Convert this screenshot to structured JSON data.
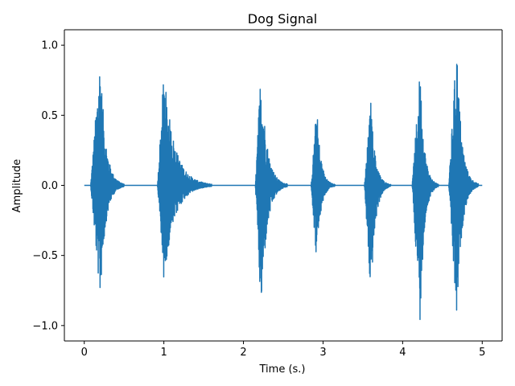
{
  "chart_data": {
    "type": "line",
    "title": "Dog Signal",
    "xlabel": "Time (s.)",
    "ylabel": "Amplitude",
    "xlim": [
      -0.25,
      5.25
    ],
    "ylim": [
      -1.11,
      1.11
    ],
    "x_ticks": [
      0,
      1,
      2,
      3,
      4,
      5
    ],
    "y_ticks": [
      -1.0,
      -0.5,
      0.0,
      0.5,
      1.0
    ],
    "x_tick_labels": [
      "0",
      "1",
      "2",
      "3",
      "4",
      "5"
    ],
    "y_tick_labels": [
      "−1.0",
      "−0.5",
      "0.0",
      "0.5",
      "1.0"
    ],
    "grid": false,
    "series": [
      {
        "color": "#1f77b4",
        "x_range": [
          0,
          5
        ],
        "bursts": [
          {
            "start": 0.08,
            "peak": 0.2,
            "end": 0.5,
            "pos_max": 0.94,
            "neg_min": -0.82
          },
          {
            "start": 0.92,
            "peak": 1.0,
            "end": 1.6,
            "pos_max": 0.82,
            "neg_min": -0.68
          },
          {
            "start": 2.15,
            "peak": 2.22,
            "end": 2.55,
            "pos_max": 0.86,
            "neg_min": -0.94
          },
          {
            "start": 2.85,
            "peak": 2.92,
            "end": 3.15,
            "pos_max": 0.58,
            "neg_min": -0.56
          },
          {
            "start": 3.52,
            "peak": 3.6,
            "end": 3.85,
            "pos_max": 0.6,
            "neg_min": -0.83
          },
          {
            "start": 4.12,
            "peak": 4.22,
            "end": 4.45,
            "pos_max": 0.84,
            "neg_min": -0.98
          },
          {
            "start": 4.58,
            "peak": 4.68,
            "end": 4.95,
            "pos_max": 1.03,
            "neg_min": -1.01
          }
        ]
      }
    ]
  }
}
